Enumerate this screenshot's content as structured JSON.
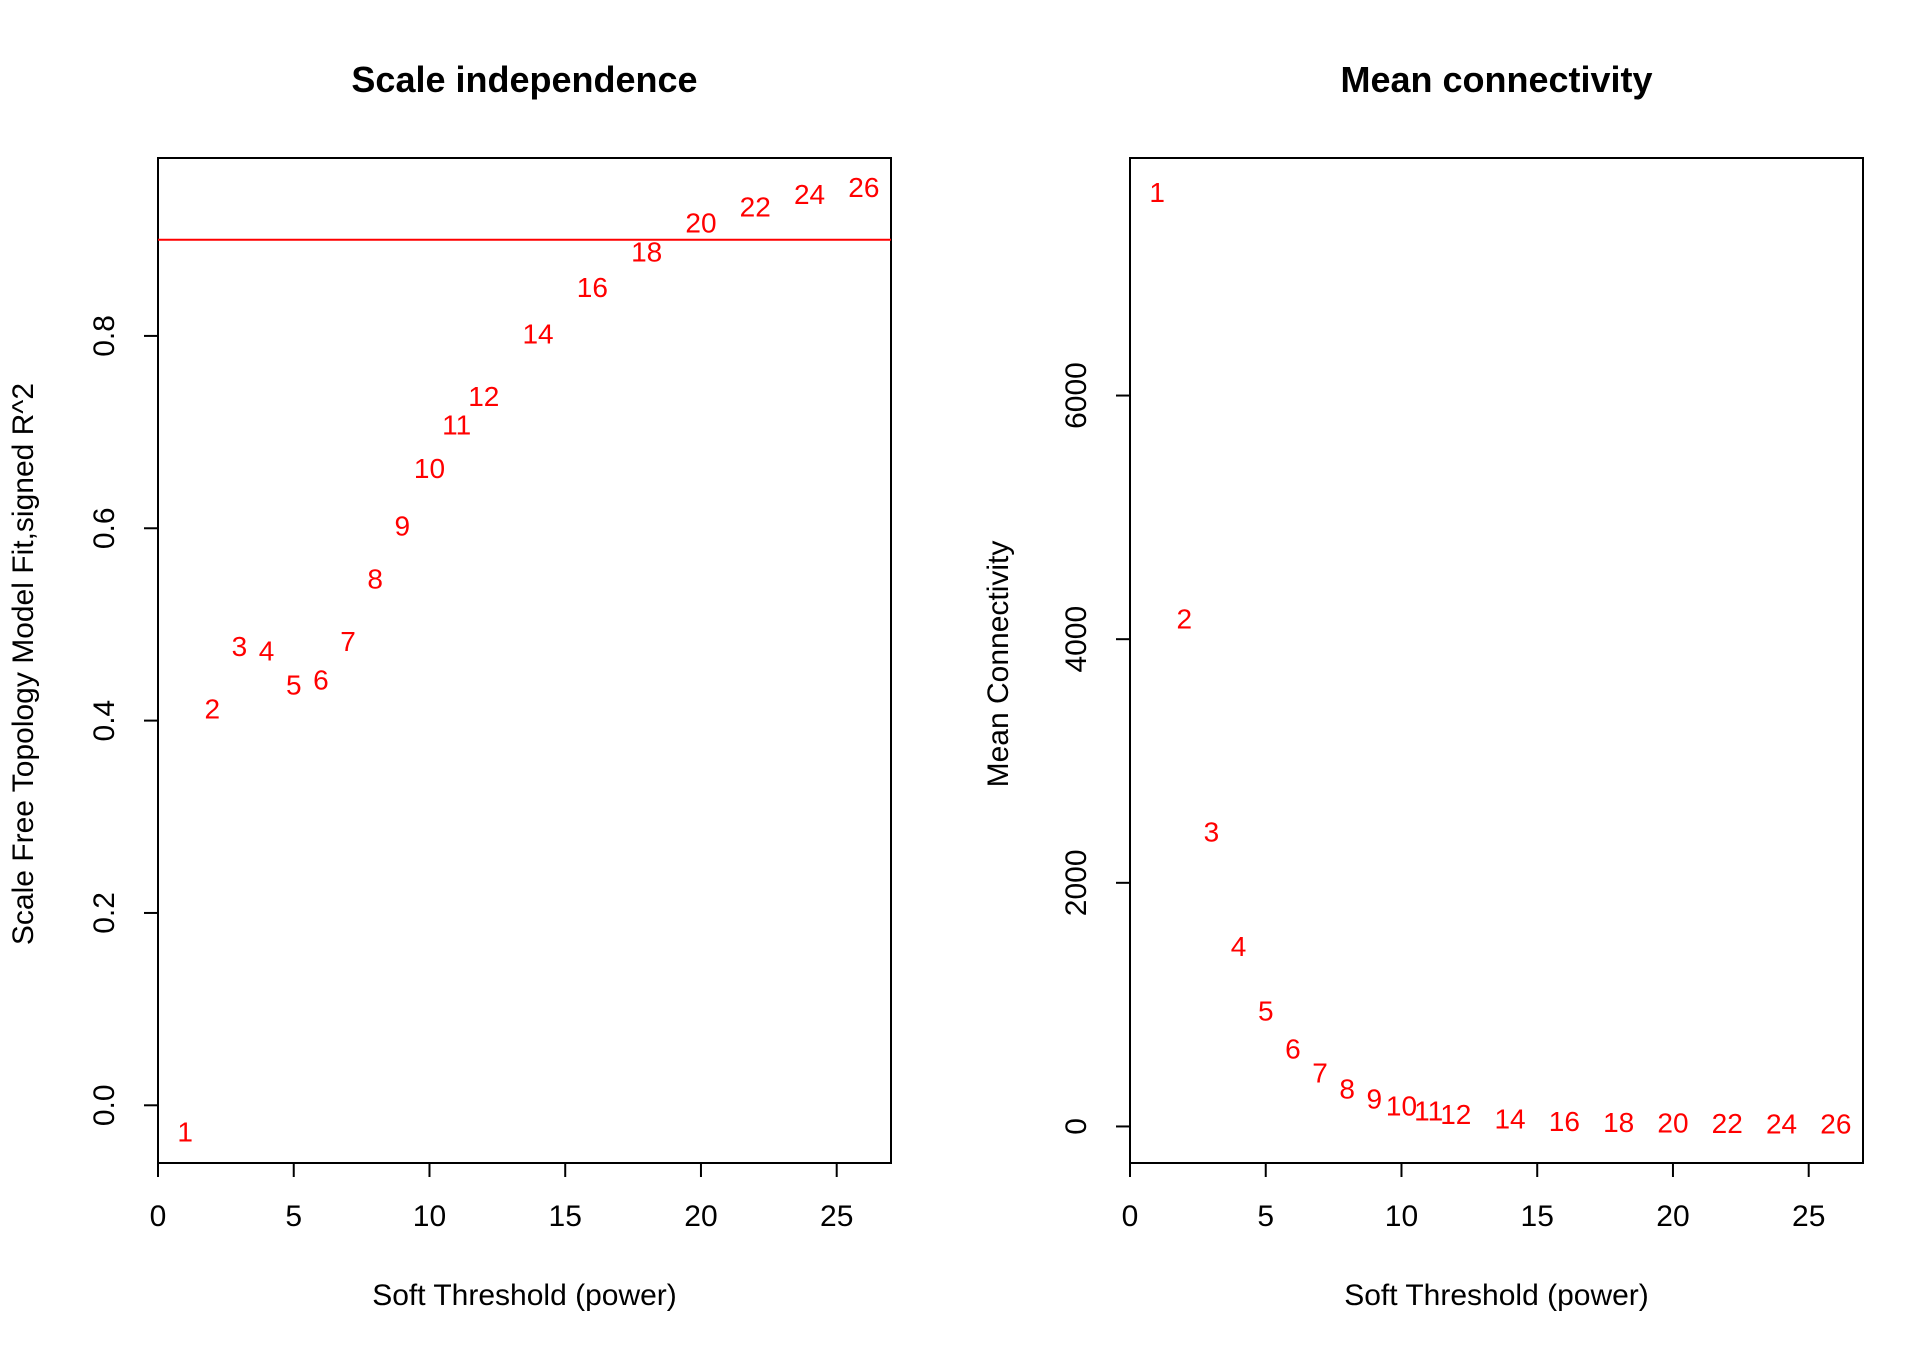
{
  "chart_data": [
    {
      "type": "scatter",
      "marker": "text-labels",
      "title": "Scale independence",
      "xlabel": "Soft Threshold (power)",
      "ylabel": "Scale Free Topology Model Fit,signed R^2",
      "xlim": [
        0,
        27
      ],
      "ylim": [
        -0.06,
        0.985
      ],
      "xticks": [
        0,
        5,
        10,
        15,
        20,
        25
      ],
      "yticks": [
        0.0,
        0.2,
        0.4,
        0.6,
        0.8
      ],
      "ytick_labels": [
        "0.0",
        "0.2",
        "0.4",
        "0.6",
        "0.8"
      ],
      "hline": {
        "y": 0.9,
        "color": "#ff0000"
      },
      "point_color": "#ff0000",
      "points": [
        {
          "label": "1",
          "x": 1,
          "y": -0.03
        },
        {
          "label": "2",
          "x": 2,
          "y": 0.41
        },
        {
          "label": "3",
          "x": 3,
          "y": 0.475
        },
        {
          "label": "4",
          "x": 4,
          "y": 0.47
        },
        {
          "label": "5",
          "x": 5,
          "y": 0.435
        },
        {
          "label": "6",
          "x": 6,
          "y": 0.44
        },
        {
          "label": "7",
          "x": 7,
          "y": 0.48
        },
        {
          "label": "8",
          "x": 8,
          "y": 0.545
        },
        {
          "label": "9",
          "x": 9,
          "y": 0.6
        },
        {
          "label": "10",
          "x": 10,
          "y": 0.66
        },
        {
          "label": "11",
          "x": 11,
          "y": 0.705
        },
        {
          "label": "12",
          "x": 12,
          "y": 0.735
        },
        {
          "label": "14",
          "x": 14,
          "y": 0.8
        },
        {
          "label": "16",
          "x": 16,
          "y": 0.848
        },
        {
          "label": "18",
          "x": 18,
          "y": 0.885
        },
        {
          "label": "20",
          "x": 20,
          "y": 0.915
        },
        {
          "label": "22",
          "x": 22,
          "y": 0.932
        },
        {
          "label": "24",
          "x": 24,
          "y": 0.945
        },
        {
          "label": "26",
          "x": 26,
          "y": 0.952
        }
      ]
    },
    {
      "type": "scatter",
      "marker": "text-labels",
      "title": "Mean connectivity",
      "xlabel": "Soft Threshold (power)",
      "ylabel": "Mean Connectivity",
      "xlim": [
        0,
        27
      ],
      "ylim": [
        -300,
        7950
      ],
      "xticks": [
        0,
        5,
        10,
        15,
        20,
        25
      ],
      "yticks": [
        0,
        2000,
        4000,
        6000
      ],
      "ytick_labels": [
        "0",
        "2000",
        "4000",
        "6000"
      ],
      "point_color": "#ff0000",
      "points": [
        {
          "label": "1",
          "x": 1,
          "y": 7650
        },
        {
          "label": "2",
          "x": 2,
          "y": 4150
        },
        {
          "label": "3",
          "x": 3,
          "y": 2400
        },
        {
          "label": "4",
          "x": 4,
          "y": 1460
        },
        {
          "label": "5",
          "x": 5,
          "y": 930
        },
        {
          "label": "6",
          "x": 6,
          "y": 620
        },
        {
          "label": "7",
          "x": 7,
          "y": 420
        },
        {
          "label": "8",
          "x": 8,
          "y": 290
        },
        {
          "label": "9",
          "x": 9,
          "y": 210
        },
        {
          "label": "10",
          "x": 10,
          "y": 150
        },
        {
          "label": "11",
          "x": 11,
          "y": 110
        },
        {
          "label": "12",
          "x": 12,
          "y": 80
        },
        {
          "label": "14",
          "x": 14,
          "y": 45
        },
        {
          "label": "16",
          "x": 16,
          "y": 25
        },
        {
          "label": "18",
          "x": 18,
          "y": 15
        },
        {
          "label": "20",
          "x": 20,
          "y": 9
        },
        {
          "label": "22",
          "x": 22,
          "y": 6
        },
        {
          "label": "24",
          "x": 24,
          "y": 4
        },
        {
          "label": "26",
          "x": 26,
          "y": 2
        }
      ]
    }
  ]
}
